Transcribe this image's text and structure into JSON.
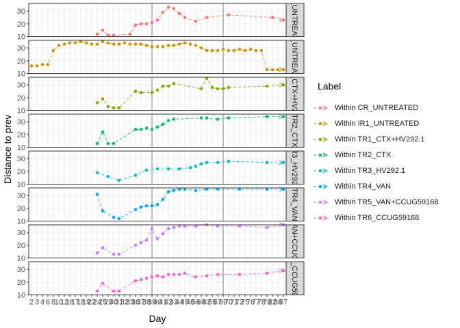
{
  "chart_data": {
    "type": "line",
    "xlabel": "Day",
    "ylabel": "Distance to prev",
    "legend_title": "Label",
    "legend_position": "right",
    "x_tick_labels": [
      "2",
      "3",
      "4",
      "6",
      "8",
      "10",
      "12",
      "16",
      "17",
      "18",
      "19",
      "22",
      "24",
      "25",
      "29",
      "30",
      "31",
      "32",
      "33",
      "36",
      "37",
      "38",
      "39",
      "40",
      "41",
      "42",
      "43",
      "44",
      "45",
      "46",
      "56",
      "60",
      "62",
      "65",
      "67",
      "69",
      "70",
      "71",
      "72",
      "75",
      "76",
      "77",
      "78",
      "79",
      "82",
      "86",
      "87"
    ],
    "vertical_reference_lines": [
      39,
      69
    ],
    "y_ticks": [
      10,
      20,
      30
    ],
    "ylim": [
      10,
      36
    ],
    "series": [
      {
        "name": "Within CR_UNTREATED",
        "strip": "CR_UNTREATED",
        "color": "#F8766D",
        "x": [
          24,
          25,
          29,
          30,
          33,
          36,
          37,
          38,
          39,
          40,
          41,
          42,
          43,
          44,
          45,
          56,
          62,
          70,
          82,
          87
        ],
        "y": [
          12,
          15,
          11,
          11,
          12,
          19,
          20,
          20,
          21,
          23,
          29,
          33,
          32,
          28,
          25,
          22,
          25,
          27,
          25,
          23
        ]
      },
      {
        "name": "Within IR1_UNTREATED",
        "strip": "IR1_UNTREATED",
        "color": "#CD9600",
        "x": [
          2,
          3,
          4,
          6,
          8,
          10,
          12,
          16,
          17,
          18,
          19,
          22,
          24,
          25,
          29,
          30,
          31,
          32,
          33,
          36,
          37,
          38,
          39,
          40,
          41,
          42,
          43,
          44,
          45,
          46,
          56,
          60,
          62,
          65,
          67,
          69,
          70,
          71,
          72,
          75,
          76,
          77,
          78,
          79,
          82,
          86,
          87
        ],
        "y": [
          16,
          16,
          17,
          17,
          28,
          32,
          33,
          34,
          34,
          35,
          34,
          33,
          33,
          35,
          34,
          33,
          33,
          34,
          33,
          33,
          33,
          32,
          31,
          31,
          31,
          32,
          32,
          33,
          34,
          33,
          32,
          30,
          28,
          28,
          28,
          29,
          28,
          28,
          29,
          28,
          29,
          28,
          28,
          13,
          13,
          13,
          13
        ]
      },
      {
        "name": "Within TR1_CTX+HV292.1",
        "strip": "TR1_CTX+HV292.1",
        "color": "#7CAE00",
        "x": [
          24,
          25,
          29,
          30,
          31,
          36,
          37,
          39,
          40,
          41,
          42,
          43,
          60,
          62,
          65,
          67,
          69,
          70,
          79,
          87
        ],
        "y": [
          16,
          19,
          13,
          12,
          12,
          25,
          24,
          24,
          26,
          29,
          29,
          31,
          27,
          35,
          28,
          27,
          27,
          28,
          29,
          30
        ]
      },
      {
        "name": "Within TR2_CTX",
        "strip": "TR2_CTX",
        "color": "#00BE67",
        "x": [
          24,
          25,
          29,
          30,
          36,
          37,
          38,
          39,
          40,
          41,
          42,
          43,
          60,
          62,
          67,
          70,
          79,
          87
        ],
        "y": [
          13,
          22,
          13,
          13,
          24,
          24,
          25,
          24,
          26,
          28,
          31,
          32,
          33,
          33,
          32,
          33,
          34,
          34
        ]
      },
      {
        "name": "Within TR3_HV292.1",
        "strip": "TR3_HV292.1",
        "color": "#00BFC4",
        "x": [
          24,
          29,
          31,
          36,
          38,
          40,
          42,
          44,
          46,
          56,
          60,
          62,
          67,
          70,
          79,
          87
        ],
        "y": [
          19,
          16,
          13,
          17,
          21,
          22,
          22,
          22,
          23,
          24,
          26,
          27,
          27,
          28,
          27,
          27
        ]
      },
      {
        "name": "Within TR4_VAN",
        "strip": "TR4_VAN",
        "color": "#00A9FF",
        "x": [
          24,
          25,
          30,
          31,
          36,
          37,
          38,
          39,
          40,
          41,
          42,
          43,
          44,
          45,
          56,
          62,
          67,
          72,
          79,
          87
        ],
        "y": [
          31,
          18,
          13,
          12,
          19,
          21,
          22,
          22,
          23,
          27,
          33,
          34,
          35,
          35,
          34,
          35,
          35,
          35,
          35,
          35
        ]
      },
      {
        "name": "Within TR5_VAN+CCUG59168",
        "strip": "TR5_VAN+CCUG59168",
        "color": "#C77CFF",
        "x": [
          24,
          25,
          30,
          31,
          36,
          37,
          38,
          39,
          40,
          41,
          42,
          43,
          44,
          45,
          56,
          62,
          67,
          72,
          79,
          87
        ],
        "y": [
          14,
          18,
          13,
          13,
          20,
          22,
          24,
          33,
          25,
          29,
          33,
          34,
          35,
          35,
          35,
          36,
          35,
          35,
          34,
          36
        ]
      },
      {
        "name": "Within TR6_CCUG59168",
        "strip": "TR6_CCUG59168",
        "color": "#FF61CC",
        "x": [
          24,
          25,
          30,
          31,
          36,
          37,
          38,
          39,
          40,
          41,
          42,
          43,
          44,
          45,
          56,
          62,
          67,
          72,
          79,
          87
        ],
        "y": [
          13,
          19,
          13,
          13,
          21,
          22,
          23,
          24,
          25,
          24,
          26,
          26,
          26,
          27,
          24,
          25,
          26,
          26,
          27,
          29
        ]
      }
    ]
  }
}
